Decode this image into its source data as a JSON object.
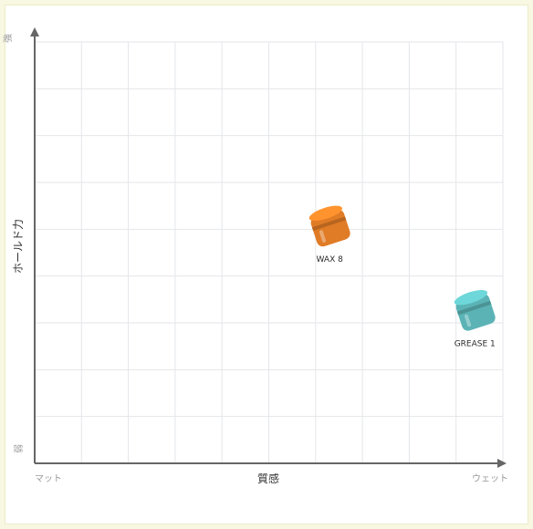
{
  "chart_data": {
    "type": "scatter",
    "title": "",
    "xlabel": "質感",
    "ylabel": "ホールド力",
    "x_min_label": "マット",
    "x_max_label": "ウェット",
    "y_max_label": "強",
    "y_min_label": "弱",
    "xlim": [
      0,
      10
    ],
    "ylim": [
      0,
      10
    ],
    "grid": true,
    "points": [
      {
        "name": "WAX 8",
        "x": 6.3,
        "y": 5.3,
        "color": "#e07b26",
        "icon": "wax-jar-icon"
      },
      {
        "name": "GREASE 1",
        "x": 9.4,
        "y": 3.3,
        "color": "#5bb3b5",
        "icon": "grease-jar-icon"
      }
    ]
  }
}
